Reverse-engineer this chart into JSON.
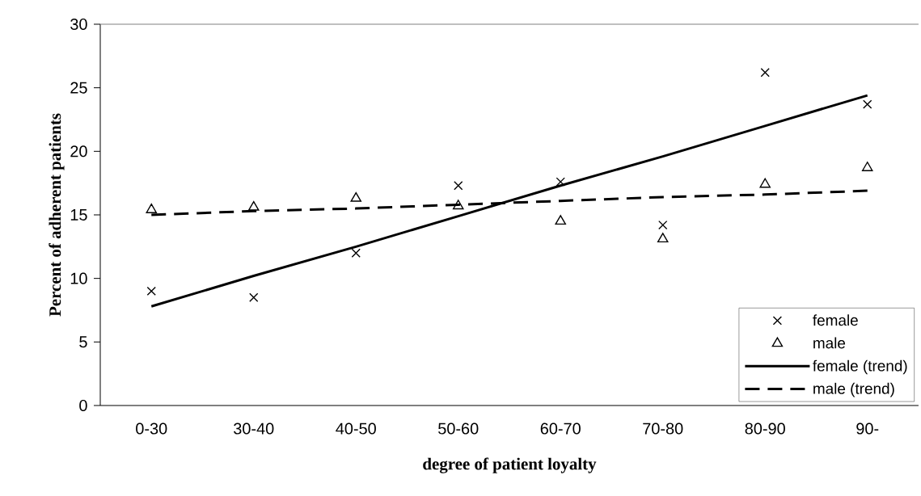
{
  "chart_data": {
    "type": "scatter",
    "xlabel": "degree of patient loyalty",
    "ylabel": "Percent of adherent patients",
    "categories": [
      "0-30",
      "30-40",
      "40-50",
      "50-60",
      "60-70",
      "70-80",
      "80-90",
      "90-"
    ],
    "ylim": [
      0,
      30
    ],
    "yticks": [
      0,
      5,
      10,
      15,
      20,
      25,
      30
    ],
    "grid": false,
    "legend": "bottom right",
    "series": [
      {
        "name": "female",
        "marker": "cross",
        "color": "#000000",
        "values": [
          9.0,
          8.5,
          12.0,
          17.3,
          17.6,
          14.2,
          26.2,
          23.7
        ]
      },
      {
        "name": "male",
        "marker": "triangle",
        "color": "#000000",
        "values": [
          15.4,
          15.6,
          16.3,
          15.7,
          14.5,
          13.1,
          17.4,
          18.7
        ]
      },
      {
        "name": "female (trend)",
        "type": "line",
        "marker": "none",
        "line_style": "solid",
        "color": "#000000",
        "values": [
          7.8,
          10.2,
          12.5,
          14.9,
          17.3,
          19.6,
          22.0,
          24.4
        ]
      },
      {
        "name": "male (trend)",
        "type": "line",
        "marker": "none",
        "line_style": "dashed",
        "color": "#000000",
        "values": [
          15.0,
          15.3,
          15.5,
          15.8,
          16.1,
          16.4,
          16.6,
          16.9
        ]
      }
    ]
  }
}
